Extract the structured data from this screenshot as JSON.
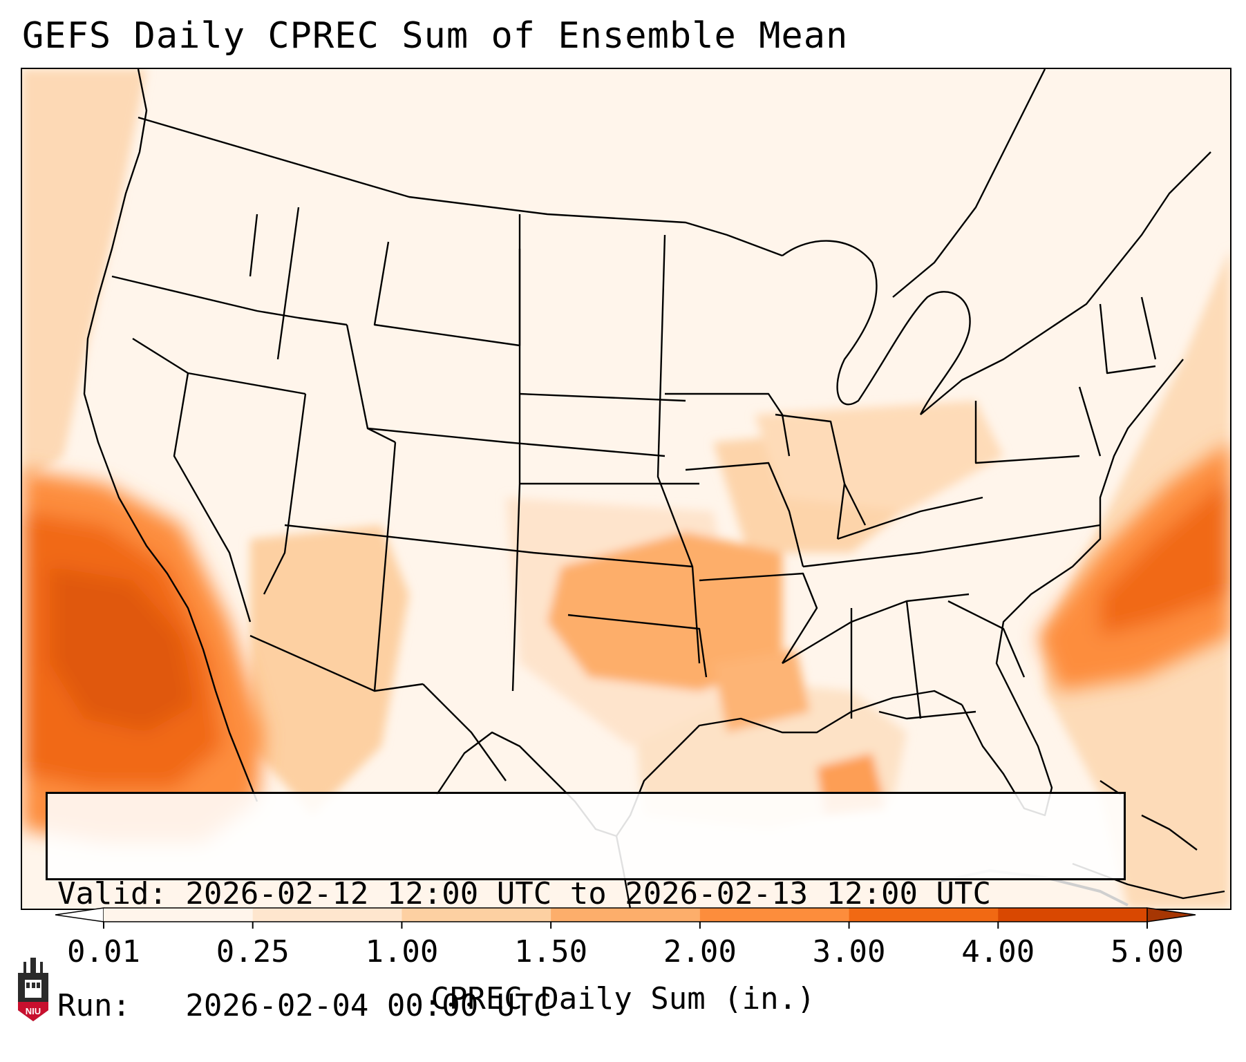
{
  "title": "GEFS Daily CPREC Sum of Ensemble Mean",
  "info": {
    "valid_line": "Valid: 2026-02-12 12:00 UTC to 2026-02-13 12:00 UTC",
    "run_line": "Run:   2026-02-04 00:00 UTC"
  },
  "colorbar": {
    "label": "CPREC Daily Sum (in.)",
    "ticks": [
      "0.01",
      "0.25",
      "1.00",
      "1.50",
      "2.00",
      "3.00",
      "4.00",
      "5.00"
    ],
    "colors": [
      "#fff5eb",
      "#fee6ce",
      "#fdd0a2",
      "#fdae6b",
      "#fd8d3c",
      "#f16913",
      "#d94801",
      "#a63603"
    ],
    "under_color": "#ffffff",
    "over_color": "#a63603"
  },
  "logo_text": "NIU",
  "map": {
    "region": "Continental United States",
    "field": "Daily convective precipitation sum",
    "heavy_areas": [
      {
        "area": "Pacific Ocean off Baja California / Southern California",
        "max_in": 4.0
      },
      {
        "area": "Atlantic Ocean off the Carolinas",
        "max_in": 4.0
      },
      {
        "area": "Southern Plains (Oklahoma / Arkansas)",
        "max_in": 2.0
      },
      {
        "area": "Central Gulf of Mexico",
        "max_in": 2.0
      }
    ]
  }
}
